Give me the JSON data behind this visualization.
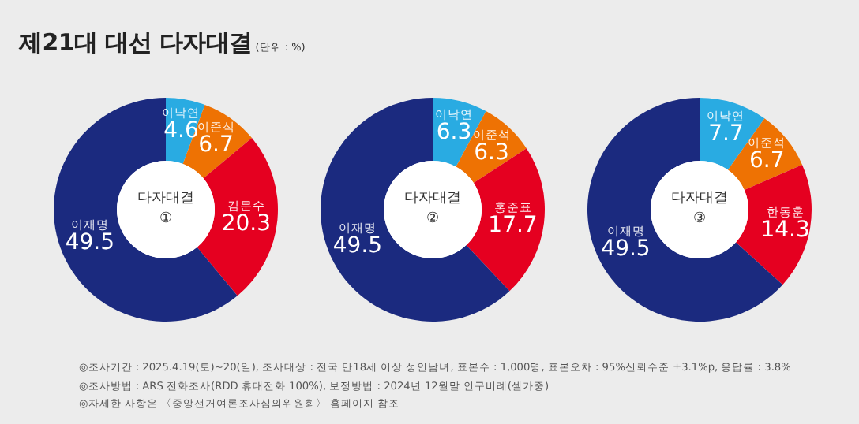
{
  "chart_data": [
    {
      "type": "donut",
      "title": "제21대 대선 다자대결",
      "subtitle": "(단위 : %)",
      "legend_title": "다자대결 ①",
      "categories": [
        "이낙연",
        "이준석",
        "김문수",
        "이재명"
      ],
      "values": [
        4.6,
        6.7,
        20.3,
        49.5
      ],
      "colors": [
        "#29abe2",
        "#ee7203",
        "#e50020",
        "#1b2a7f"
      ],
      "data_labels": true,
      "annotations": [
        "◎조사기간 : 2025.4.19(토)~20(일), 조사대상 : 전국 만18세 이상 성인남녀, 표본수 : 1,000명, 표본오차 : 95%신뢰수준 ±3.1%p, 응답률 : 3.8%",
        "◎조사방법 : ARS 전화조사(RDD 휴대전화 100%), 보정방법 : 2024년 12월말 인구비례(셀가중)",
        "◎자세한 사항은 〈중앙선거여론조사심의위원회〉 홈페이지 참조"
      ]
    },
    {
      "type": "donut",
      "legend_title": "다자대결 ②",
      "categories": [
        "이낙연",
        "이준석",
        "홍준표",
        "이재명"
      ],
      "values": [
        6.3,
        6.3,
        17.7,
        49.5
      ],
      "colors": [
        "#29abe2",
        "#ee7203",
        "#e50020",
        "#1b2a7f"
      ],
      "data_labels": true
    },
    {
      "type": "donut",
      "legend_title": "다자대결 ③",
      "categories": [
        "이낙연",
        "이준석",
        "한동훈",
        "이재명"
      ],
      "values": [
        7.7,
        6.7,
        14.3,
        49.5
      ],
      "colors": [
        "#29abe2",
        "#ee7203",
        "#e50020",
        "#1b2a7f"
      ],
      "data_labels": true
    }
  ]
}
